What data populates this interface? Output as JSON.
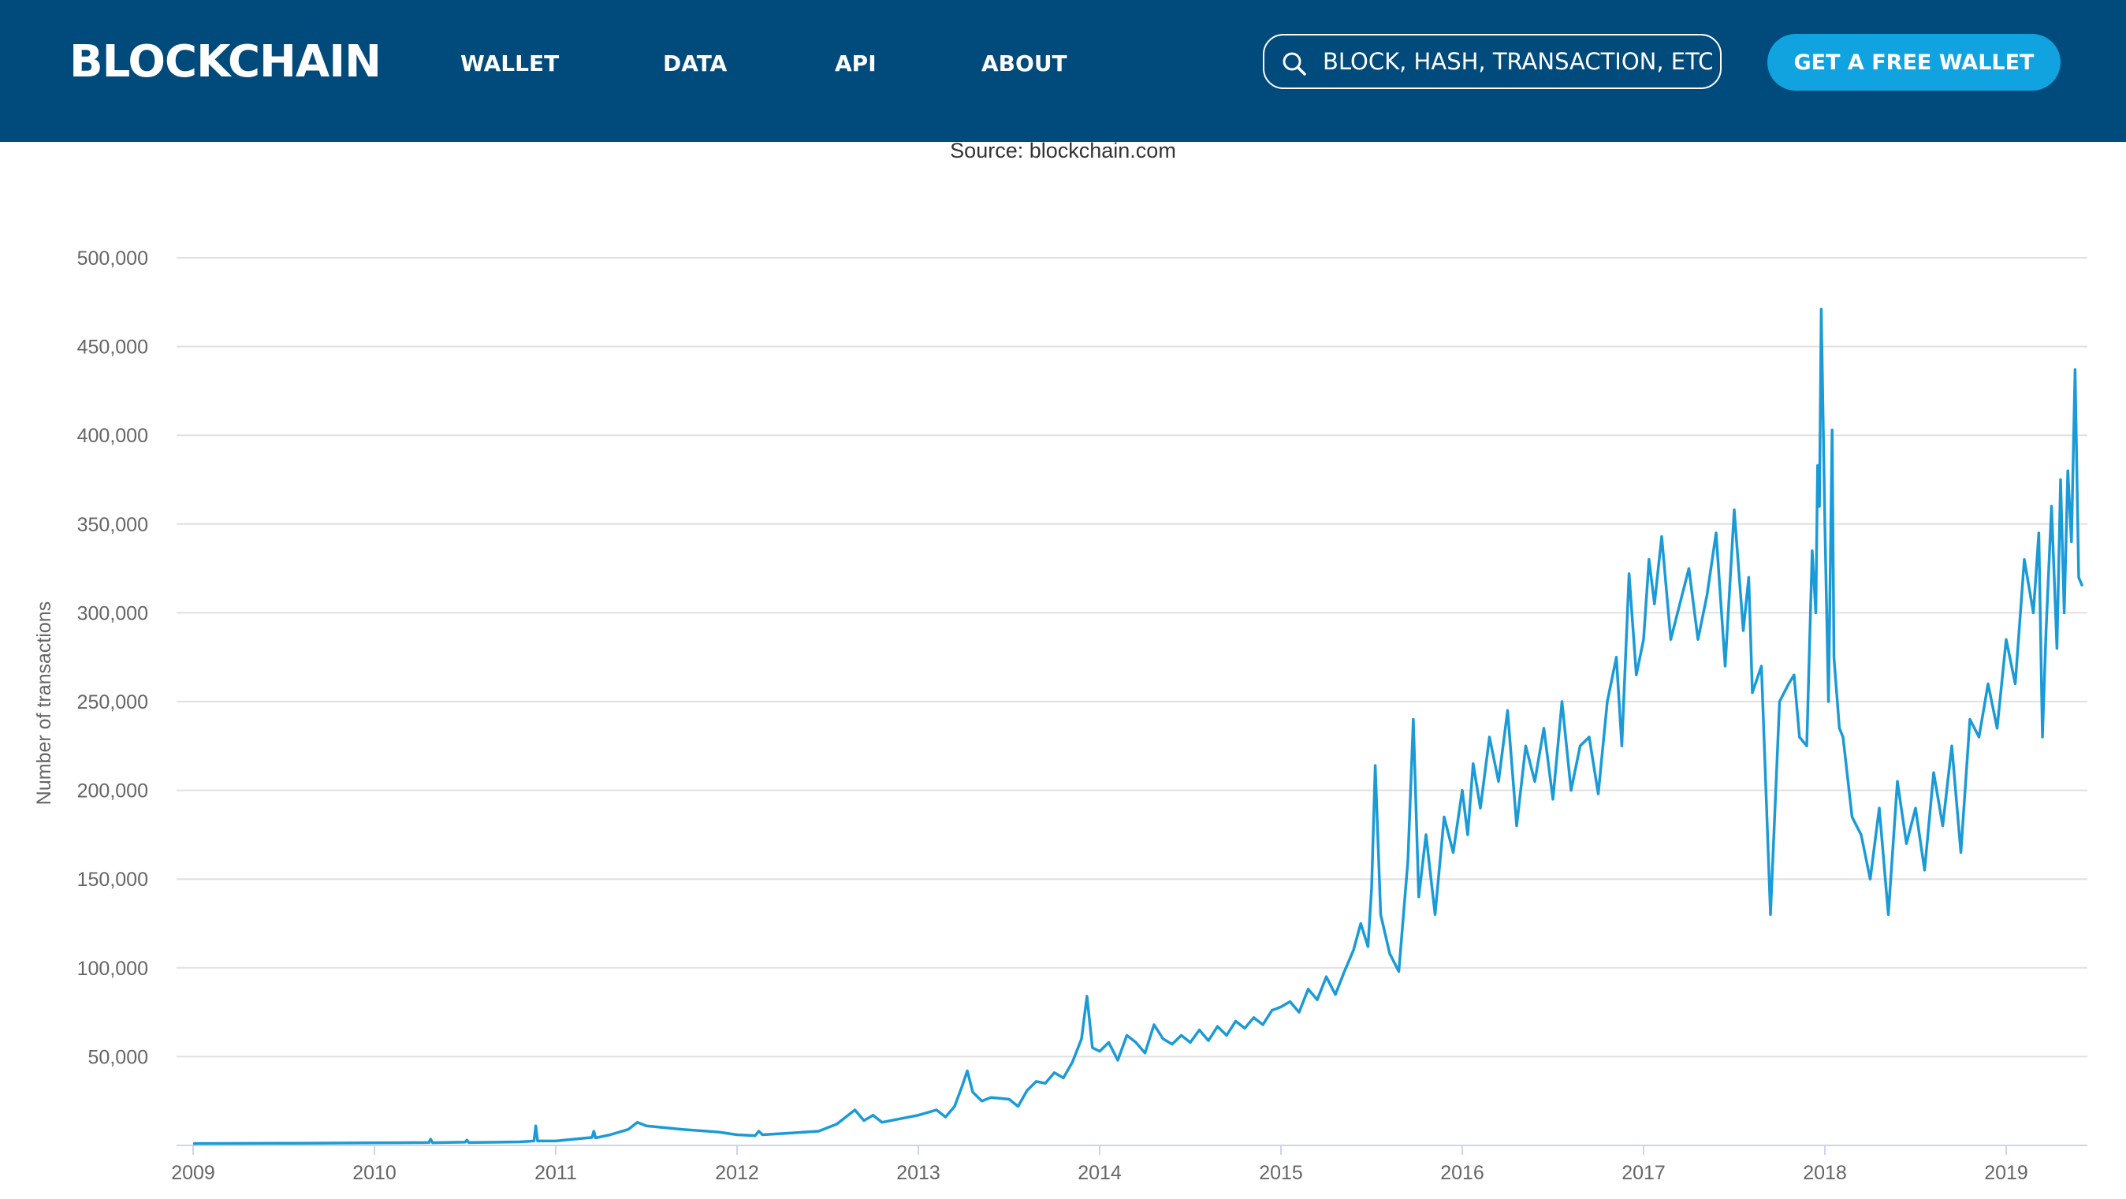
{
  "header": {
    "logo": "BLOCKCHAIN",
    "nav": [
      "WALLET",
      "DATA",
      "API",
      "ABOUT"
    ],
    "search_placeholder": "BLOCK, HASH, TRANSACTION, ETC...",
    "cta": "GET A FREE WALLET",
    "colors": {
      "background": "#004a7c",
      "accent": "#10a3e0"
    }
  },
  "source": "Source: blockchain.com",
  "chart_data": {
    "type": "line",
    "ylabel": "Number of transactions",
    "ylim": [
      0,
      500000
    ],
    "yticks": [
      50000,
      100000,
      150000,
      200000,
      250000,
      300000,
      350000,
      400000,
      450000,
      500000
    ],
    "ytick_labels": [
      "50,000",
      "100,000",
      "150,000",
      "200,000",
      "250,000",
      "300,000",
      "350,000",
      "400,000",
      "450,000",
      "500,000"
    ],
    "xlim": [
      2009,
      2019.43
    ],
    "xticks": [
      "2009",
      "2010",
      "2011",
      "2012",
      "2013",
      "2014",
      "2015",
      "2016",
      "2017",
      "2018",
      "2019"
    ],
    "grid": true,
    "line_color": "#1a9bd7",
    "series": [
      {
        "x": [
          2009.0,
          2009.5,
          2010.0,
          2010.3,
          2010.31,
          2010.32,
          2010.5,
          2010.51,
          2010.52,
          2010.8,
          2010.88,
          2010.89,
          2010.9,
          2011.0,
          2011.1,
          2011.2,
          2011.21,
          2011.22,
          2011.3,
          2011.4,
          2011.45,
          2011.5,
          2011.7,
          2011.9,
          2012.0,
          2012.1,
          2012.12,
          2012.14,
          2012.3,
          2012.45,
          2012.55,
          2012.6,
          2012.65,
          2012.7,
          2012.75,
          2012.8,
          2012.9,
          2013.0,
          2013.1,
          2013.15,
          2013.2,
          2013.24,
          2013.27,
          2013.3,
          2013.35,
          2013.4,
          2013.5,
          2013.55,
          2013.6,
          2013.65,
          2013.7,
          2013.75,
          2013.8,
          2013.85,
          2013.9,
          2013.93,
          2013.96,
          2014.0,
          2014.05,
          2014.1,
          2014.15,
          2014.2,
          2014.25,
          2014.3,
          2014.35,
          2014.4,
          2014.45,
          2014.5,
          2014.55,
          2014.6,
          2014.65,
          2014.7,
          2014.75,
          2014.8,
          2014.85,
          2014.9,
          2014.95,
          2015.0,
          2015.05,
          2015.1,
          2015.15,
          2015.2,
          2015.25,
          2015.3,
          2015.35,
          2015.4,
          2015.44,
          2015.48,
          2015.5,
          2015.52,
          2015.55,
          2015.6,
          2015.65,
          2015.7,
          2015.73,
          2015.76,
          2015.8,
          2015.85,
          2015.9,
          2015.95,
          2016.0,
          2016.03,
          2016.06,
          2016.1,
          2016.15,
          2016.2,
          2016.25,
          2016.3,
          2016.35,
          2016.4,
          2016.45,
          2016.5,
          2016.55,
          2016.6,
          2016.65,
          2016.7,
          2016.75,
          2016.8,
          2016.85,
          2016.88,
          2016.92,
          2016.96,
          2017.0,
          2017.03,
          2017.06,
          2017.1,
          2017.15,
          2017.2,
          2017.25,
          2017.3,
          2017.35,
          2017.4,
          2017.45,
          2017.5,
          2017.55,
          2017.58,
          2017.6,
          2017.65,
          2017.7,
          2017.75,
          2017.8,
          2017.83,
          2017.86,
          2017.9,
          2017.93,
          2017.95,
          2017.96,
          2017.97,
          2017.98,
          2018.0,
          2018.02,
          2018.04,
          2018.05,
          2018.08,
          2018.1,
          2018.15,
          2018.2,
          2018.25,
          2018.3,
          2018.35,
          2018.4,
          2018.45,
          2018.5,
          2018.55,
          2018.6,
          2018.65,
          2018.7,
          2018.75,
          2018.8,
          2018.85,
          2018.9,
          2018.95,
          2019.0,
          2019.05,
          2019.1,
          2019.15,
          2019.18,
          2019.2,
          2019.22,
          2019.25,
          2019.28,
          2019.3,
          2019.32,
          2019.34,
          2019.36,
          2019.38,
          2019.4,
          2019.42
        ],
        "y": [
          1000,
          1200,
          1400,
          1600,
          3500,
          1500,
          1800,
          3000,
          1600,
          2000,
          2500,
          11000,
          2500,
          2500,
          3500,
          4500,
          8000,
          4200,
          6000,
          9000,
          13000,
          11000,
          9000,
          7500,
          6000,
          5500,
          8000,
          6000,
          7000,
          8000,
          12000,
          16000,
          20000,
          14000,
          17000,
          13000,
          15000,
          17000,
          20000,
          16000,
          22000,
          33000,
          42000,
          30000,
          25000,
          27000,
          26000,
          22000,
          31000,
          36000,
          35000,
          41000,
          38000,
          47000,
          60000,
          84000,
          55000,
          53000,
          58000,
          48000,
          62000,
          58000,
          52000,
          68000,
          60000,
          57000,
          62000,
          58000,
          65000,
          59000,
          67000,
          62000,
          70000,
          66000,
          72000,
          68000,
          76000,
          78000,
          81000,
          75000,
          88000,
          82000,
          95000,
          85000,
          98000,
          110000,
          125000,
          112000,
          145000,
          214000,
          130000,
          108000,
          98000,
          160000,
          240000,
          140000,
          175000,
          130000,
          185000,
          165000,
          200000,
          175000,
          215000,
          190000,
          230000,
          205000,
          245000,
          180000,
          225000,
          205000,
          235000,
          195000,
          250000,
          200000,
          225000,
          230000,
          198000,
          250000,
          275000,
          225000,
          322000,
          265000,
          285000,
          330000,
          305000,
          343000,
          285000,
          305000,
          325000,
          285000,
          310000,
          345000,
          270000,
          358000,
          290000,
          320000,
          255000,
          270000,
          130000,
          250000,
          260000,
          265000,
          230000,
          225000,
          335000,
          300000,
          383000,
          360000,
          471000,
          350000,
          250000,
          403000,
          275000,
          235000,
          230000,
          185000,
          175000,
          150000,
          190000,
          130000,
          205000,
          170000,
          190000,
          155000,
          210000,
          180000,
          225000,
          165000,
          240000,
          230000,
          260000,
          235000,
          285000,
          260000,
          330000,
          300000,
          345000,
          230000,
          290000,
          360000,
          280000,
          375000,
          300000,
          380000,
          340000,
          437000,
          320000,
          315000
        ]
      }
    ]
  }
}
